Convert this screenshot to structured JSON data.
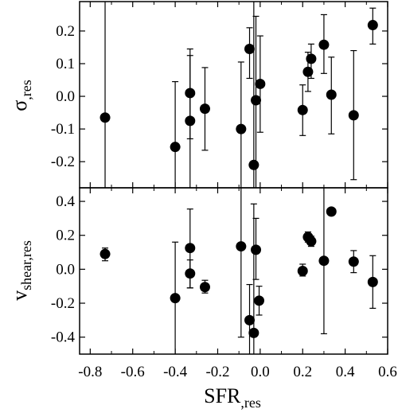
{
  "chart_data": [
    {
      "type": "scatter",
      "panel": "top",
      "ylabel": "σ",
      "ylabel_sub": ",res",
      "xlim": [
        -0.85,
        0.6
      ],
      "ylim": [
        -0.28,
        0.29
      ],
      "yticks": [
        -0.2,
        -0.1,
        0.0,
        0.1,
        0.2
      ],
      "ytick_labels": [
        "-0.2",
        "-0.1",
        "0.0",
        "0.1",
        "0.2"
      ],
      "grid": false,
      "points": [
        {
          "x": -0.73,
          "y": -0.065,
          "lo": -0.29,
          "hi": 0.29
        },
        {
          "x": -0.4,
          "y": -0.155,
          "lo": -0.28,
          "hi": 0.045
        },
        {
          "x": -0.33,
          "y": 0.01,
          "lo": -0.28,
          "hi": 0.125
        },
        {
          "x": -0.33,
          "y": -0.075,
          "lo": -0.13,
          "hi": 0.145
        },
        {
          "x": -0.26,
          "y": -0.038,
          "lo": -0.165,
          "hi": 0.088
        },
        {
          "x": -0.09,
          "y": -0.1,
          "lo": -0.28,
          "hi": 0.105
        },
        {
          "x": -0.05,
          "y": 0.145,
          "lo": 0.055,
          "hi": 0.21
        },
        {
          "x": -0.03,
          "y": -0.21,
          "lo": -0.28,
          "hi": 0.29
        },
        {
          "x": -0.02,
          "y": -0.012,
          "lo": -0.28,
          "hi": 0.245
        },
        {
          "x": 0.0,
          "y": 0.038,
          "lo": -0.11,
          "hi": 0.185
        },
        {
          "x": 0.2,
          "y": -0.042,
          "lo": -0.12,
          "hi": 0.035
        },
        {
          "x": 0.225,
          "y": 0.075,
          "lo": 0.015,
          "hi": 0.135
        },
        {
          "x": 0.24,
          "y": 0.115,
          "lo": 0.055,
          "hi": 0.16
        },
        {
          "x": 0.3,
          "y": 0.158,
          "lo": 0.07,
          "hi": 0.25
        },
        {
          "x": 0.335,
          "y": 0.005,
          "lo": -0.115,
          "hi": 0.12
        },
        {
          "x": 0.44,
          "y": -0.058,
          "lo": -0.255,
          "hi": 0.14
        },
        {
          "x": 0.53,
          "y": 0.218,
          "lo": 0.16,
          "hi": 0.27
        }
      ]
    },
    {
      "type": "scatter",
      "panel": "bottom",
      "xlabel": "SFR",
      "xlabel_sub": ",res",
      "ylabel": "v",
      "ylabel_sub": "shear,res",
      "xlim": [
        -0.85,
        0.6
      ],
      "ylim": [
        -0.5,
        0.48
      ],
      "xticks": [
        -0.8,
        -0.6,
        -0.4,
        -0.2,
        0.0,
        0.2,
        0.4,
        0.6
      ],
      "xtick_labels": [
        "-0.8",
        "-0.6",
        "-0.4",
        "-0.2",
        "0.0",
        "0.2",
        "0.4",
        "0.6"
      ],
      "yticks": [
        -0.4,
        -0.2,
        0.0,
        0.2,
        0.4
      ],
      "ytick_labels": [
        "-0.4",
        "-0.2",
        "0.0",
        "0.2",
        "0.4"
      ],
      "grid": false,
      "points": [
        {
          "x": -0.73,
          "y": 0.09,
          "lo": 0.05,
          "hi": 0.125
        },
        {
          "x": -0.4,
          "y": -0.17,
          "lo": -0.5,
          "hi": 0.16
        },
        {
          "x": -0.33,
          "y": 0.125,
          "lo": -0.11,
          "hi": 0.355
        },
        {
          "x": -0.33,
          "y": -0.025,
          "lo": -0.11,
          "hi": 0.055
        },
        {
          "x": -0.26,
          "y": -0.105,
          "lo": -0.14,
          "hi": -0.065
        },
        {
          "x": -0.09,
          "y": 0.135,
          "lo": -0.4,
          "hi": 0.48
        },
        {
          "x": -0.05,
          "y": -0.3,
          "lo": -0.5,
          "hi": -0.09
        },
        {
          "x": -0.03,
          "y": -0.375,
          "lo": -0.5,
          "hi": 0.385
        },
        {
          "x": -0.02,
          "y": 0.115,
          "lo": -0.06,
          "hi": 0.3
        },
        {
          "x": -0.005,
          "y": -0.185,
          "lo": -0.27,
          "hi": -0.1
        },
        {
          "x": 0.2,
          "y": -0.01,
          "lo": -0.04,
          "hi": 0.03
        },
        {
          "x": 0.225,
          "y": 0.19,
          "lo": 0.16,
          "hi": 0.22
        },
        {
          "x": 0.24,
          "y": 0.165,
          "lo": 0.135,
          "hi": 0.195
        },
        {
          "x": 0.3,
          "y": 0.05,
          "lo": -0.38,
          "hi": 0.48
        },
        {
          "x": 0.335,
          "y": 0.34,
          "lo": 0.34,
          "hi": 0.34
        },
        {
          "x": 0.44,
          "y": 0.045,
          "lo": -0.02,
          "hi": 0.11
        },
        {
          "x": 0.53,
          "y": -0.075,
          "lo": -0.23,
          "hi": 0.08
        }
      ]
    }
  ]
}
